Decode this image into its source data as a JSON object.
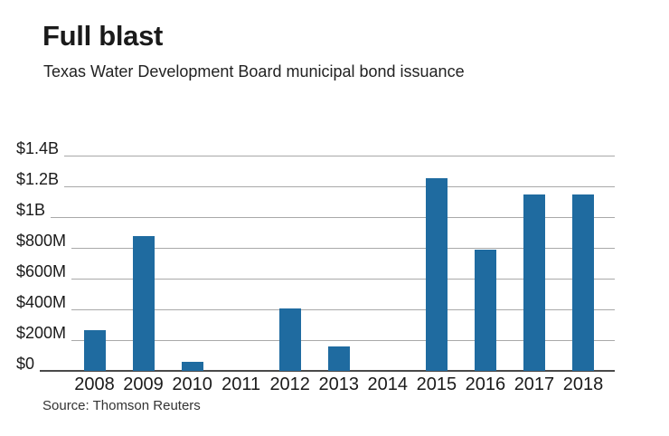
{
  "header": {
    "title": "Full blast",
    "subtitle": "Texas Water Development Board municipal bond issuance"
  },
  "source": "Source: Thomson Reuters",
  "colors": {
    "bar": "#1f6ba0",
    "gridline": "#a9a9a9",
    "axis_line": "#4a4a4a",
    "text": "#1a1a1a"
  },
  "chart_data": {
    "type": "bar",
    "title": "Full blast",
    "subtitle": "Texas Water Development Board municipal bond issuance",
    "categories": [
      "2008",
      "2009",
      "2010",
      "2011",
      "2012",
      "2013",
      "2014",
      "2015",
      "2016",
      "2017",
      "2018"
    ],
    "values": [
      265,
      875,
      60,
      0,
      405,
      160,
      0,
      1255,
      790,
      1150,
      1150
    ],
    "values_unit": "USD millions",
    "xlabel": "",
    "ylabel": "",
    "ylim": [
      0,
      1400
    ],
    "ytick_values": [
      1400,
      1200,
      1000,
      800,
      600,
      400,
      200,
      0
    ],
    "ytick_labels": [
      "$1.4B",
      "$1.2B",
      "$1B",
      "$800M",
      "$600M",
      "$400M",
      "$200M",
      "$0"
    ],
    "grid": true,
    "legend": "none",
    "source": "Source: Thomson Reuters"
  }
}
